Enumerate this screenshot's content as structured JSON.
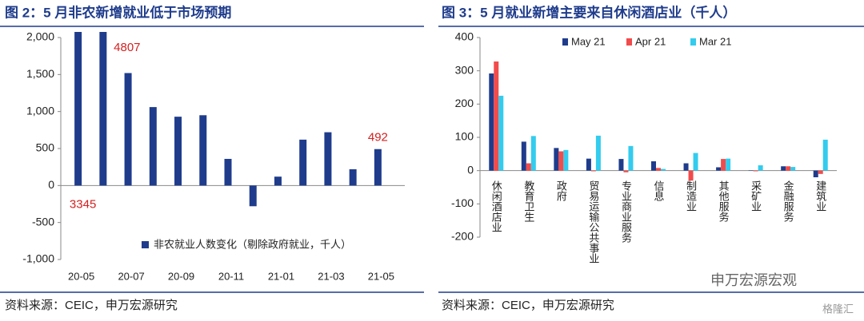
{
  "chart_data": [
    {
      "type": "bar",
      "title": "图 2：5 月非农新增就业低于市场预期",
      "categories": [
        "20-05",
        null,
        "20-07",
        null,
        "20-09",
        null,
        "20-11",
        null,
        "21-01",
        null,
        "21-03",
        null,
        "21-05"
      ],
      "series": [
        {
          "name": "非农就业人数变化（剔除政府就业，千人）",
          "color": "#1f3c8c",
          "values": [
            3345,
            4807,
            1520,
            1060,
            930,
            950,
            360,
            -280,
            120,
            620,
            720,
            220,
            492
          ],
          "value_labels": [
            "3345",
            "4807",
            null,
            null,
            null,
            null,
            null,
            null,
            null,
            null,
            null,
            null,
            "492"
          ]
        }
      ],
      "ylim": [
        -1000,
        2000
      ],
      "yticks": [
        {
          "value": -1000,
          "label": "-1,000"
        },
        -500,
        0,
        500,
        {
          "value": 1000,
          "label": "1,000"
        },
        {
          "value": 1500,
          "label": "1,500"
        },
        {
          "value": 2000,
          "label": "2,000"
        }
      ],
      "legend": "lower right",
      "source": "资料来源：CEIC，申万宏源研究"
    },
    {
      "type": "grouped_bar",
      "title": "图 3：5 月就业新增主要来自休闲酒店业（千人）",
      "categories": [
        "休闲酒店业",
        "教育卫生",
        "政府",
        "贸易运输公共事业",
        "专业商业服务",
        "信息",
        "制造业",
        "其他服务",
        "采矿业",
        "金融服务",
        "建筑业"
      ],
      "series": [
        {
          "name": "May 21",
          "color": "#1f3c8c",
          "values": [
            292,
            87,
            68,
            36,
            35,
            28,
            22,
            10,
            1,
            13,
            -20
          ]
        },
        {
          "name": "Apr 21",
          "color": "#f24b4b",
          "values": [
            328,
            22,
            58,
            -2,
            -5,
            8,
            -30,
            35,
            -2,
            13,
            -10
          ]
        },
        {
          "name": "Mar 21",
          "color": "#33ccee",
          "values": [
            225,
            104,
            62,
            105,
            74,
            5,
            53,
            36,
            16,
            11,
            93
          ]
        }
      ],
      "ylim": [
        -200,
        400
      ],
      "yticks": [
        -200,
        -100,
        0,
        100,
        200,
        300,
        400
      ],
      "legend": "upper center",
      "source": "资料来源：CEIC，申万宏源研究"
    }
  ],
  "watermark": "申万宏源宏观",
  "watermark2": "格隆汇"
}
